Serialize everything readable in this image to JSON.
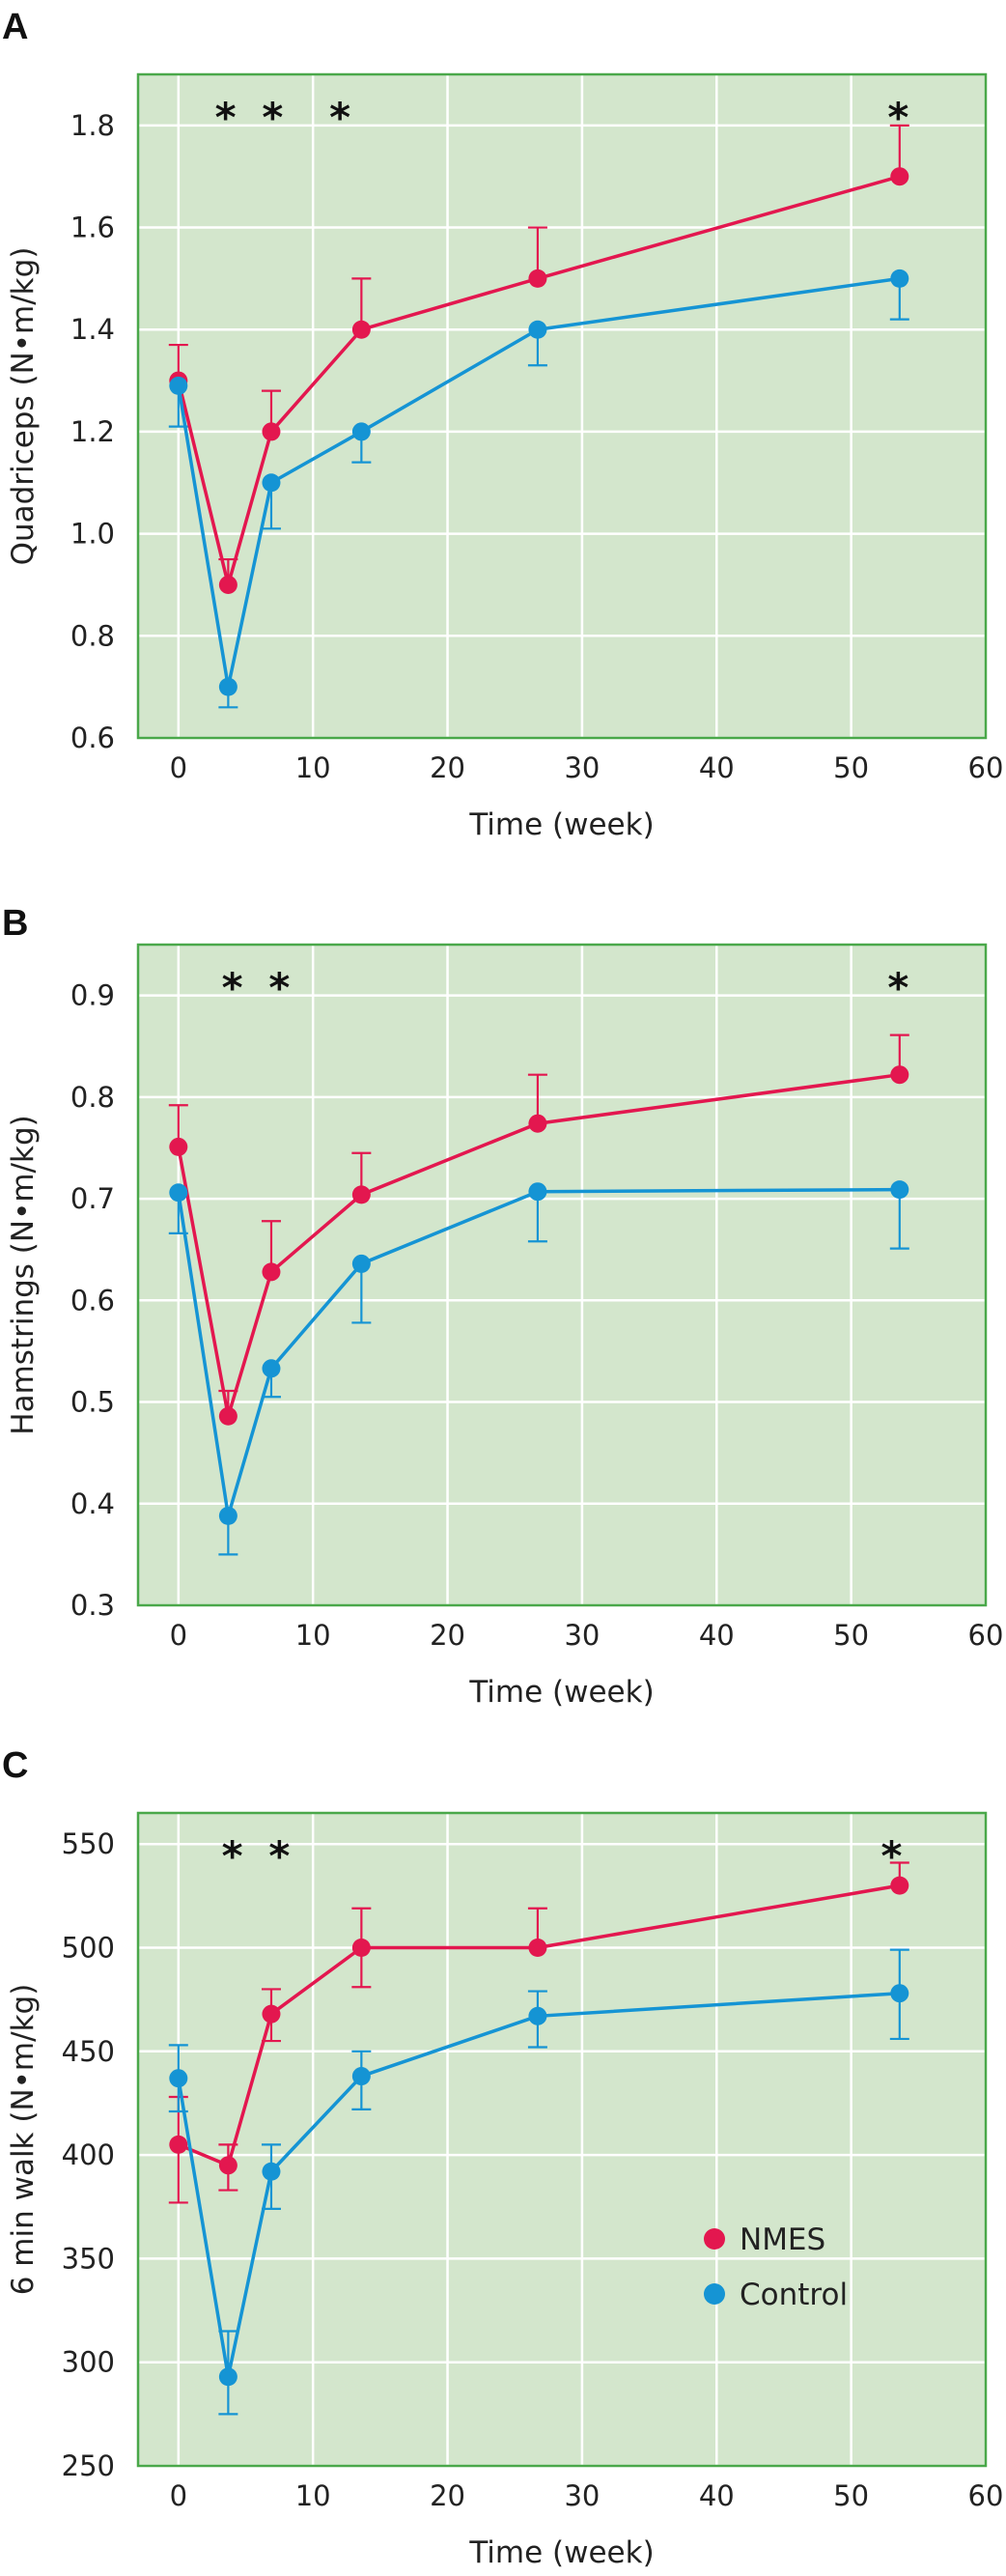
{
  "colors": {
    "plot_bg": "#d3e6cc",
    "frame": "#4aa84a",
    "grid": "#ffffff",
    "NMES": "#e3174f",
    "Control": "#1594d4"
  },
  "chart_data": [
    {
      "type": "line",
      "panel": "A",
      "xlabel": "Time (week)",
      "ylabel": "Quadriceps (N•m/kg)",
      "xlim": [
        -3,
        60
      ],
      "ylim": [
        0.6,
        1.9
      ],
      "xticks": [
        0,
        10,
        20,
        30,
        40,
        50,
        60
      ],
      "yticks": [
        0.6,
        0.8,
        1.0,
        1.2,
        1.4,
        1.6,
        1.8
      ],
      "ytick_labels": [
        "0.6",
        "0.8",
        "1.0",
        "1.2",
        "1.4",
        "1.6",
        "1.8"
      ],
      "grid": true,
      "significance_x": [
        3.5,
        7,
        12,
        53.5
      ],
      "significance_label": "*",
      "series": [
        {
          "name": "NMES",
          "x": [
            0,
            3.7,
            6.9,
            13.6,
            26.7,
            53.6
          ],
          "y": [
            1.3,
            0.9,
            1.2,
            1.4,
            1.5,
            1.7
          ],
          "err_up": [
            0.07,
            0.05,
            0.08,
            0.1,
            0.1,
            0.1
          ],
          "err_down": [
            0,
            0,
            0,
            0,
            0,
            0
          ]
        },
        {
          "name": "Control",
          "x": [
            0,
            3.7,
            6.9,
            13.6,
            26.7,
            53.6
          ],
          "y": [
            1.29,
            0.7,
            1.1,
            1.2,
            1.4,
            1.5
          ],
          "err_up": [
            0,
            0,
            0,
            0,
            0,
            0
          ],
          "err_down": [
            0.08,
            0.04,
            0.09,
            0.06,
            0.07,
            0.08
          ]
        }
      ]
    },
    {
      "type": "line",
      "panel": "B",
      "xlabel": "Time (week)",
      "ylabel": "Hamstrings (N•m/kg)",
      "xlim": [
        -3,
        60
      ],
      "ylim": [
        0.3,
        0.95
      ],
      "xticks": [
        0,
        10,
        20,
        30,
        40,
        50,
        60
      ],
      "yticks": [
        0.3,
        0.4,
        0.5,
        0.6,
        0.7,
        0.8,
        0.9
      ],
      "ytick_labels": [
        "0.3",
        "0.4",
        "0.5",
        "0.6",
        "0.7",
        "0.8",
        "0.9"
      ],
      "grid": true,
      "significance_x": [
        4,
        7.5,
        53.5
      ],
      "significance_label": "*",
      "series": [
        {
          "name": "NMES",
          "x": [
            0,
            3.7,
            6.9,
            13.6,
            26.7,
            53.6
          ],
          "y": [
            0.751,
            0.486,
            0.628,
            0.704,
            0.774,
            0.822
          ],
          "err_up": [
            0.041,
            0.025,
            0.05,
            0.041,
            0.048,
            0.039
          ],
          "err_down": [
            0,
            0,
            0,
            0,
            0,
            0
          ]
        },
        {
          "name": "Control",
          "x": [
            0,
            3.7,
            6.9,
            13.6,
            26.7,
            53.6
          ],
          "y": [
            0.706,
            0.388,
            0.533,
            0.636,
            0.707,
            0.709
          ],
          "err_up": [
            0,
            0,
            0,
            0,
            0,
            0
          ],
          "err_down": [
            0.04,
            0.038,
            0.028,
            0.058,
            0.049,
            0.058
          ]
        }
      ]
    },
    {
      "type": "line",
      "panel": "C",
      "xlabel": "Time (week)",
      "ylabel": "6 min walk (N•m/kg)",
      "xlim": [
        -3,
        60
      ],
      "ylim": [
        250,
        565
      ],
      "xticks": [
        0,
        10,
        20,
        30,
        40,
        50,
        60
      ],
      "yticks": [
        250,
        300,
        350,
        400,
        450,
        500,
        550
      ],
      "ytick_labels": [
        "250",
        "300",
        "350",
        "400",
        "450",
        "500",
        "550"
      ],
      "grid": true,
      "significance_x": [
        4,
        7.5,
        53
      ],
      "significance_label": "*",
      "legend": {
        "position": "lower-right",
        "entries": [
          "NMES",
          "Control"
        ]
      },
      "series": [
        {
          "name": "NMES",
          "x": [
            0,
            3.7,
            6.9,
            13.6,
            26.7,
            53.6
          ],
          "y": [
            405,
            395,
            468,
            500,
            500,
            530
          ],
          "err_up": [
            23,
            10,
            12,
            19,
            19,
            11
          ],
          "err_down": [
            28,
            12,
            13,
            19,
            0,
            0
          ]
        },
        {
          "name": "Control",
          "x": [
            0,
            3.7,
            6.9,
            13.6,
            26.7,
            53.6
          ],
          "y": [
            437,
            293,
            392,
            438,
            467,
            478
          ],
          "err_up": [
            16,
            22,
            13,
            12,
            12,
            21
          ],
          "err_down": [
            16,
            18,
            18,
            16,
            15,
            22
          ]
        }
      ]
    }
  ]
}
